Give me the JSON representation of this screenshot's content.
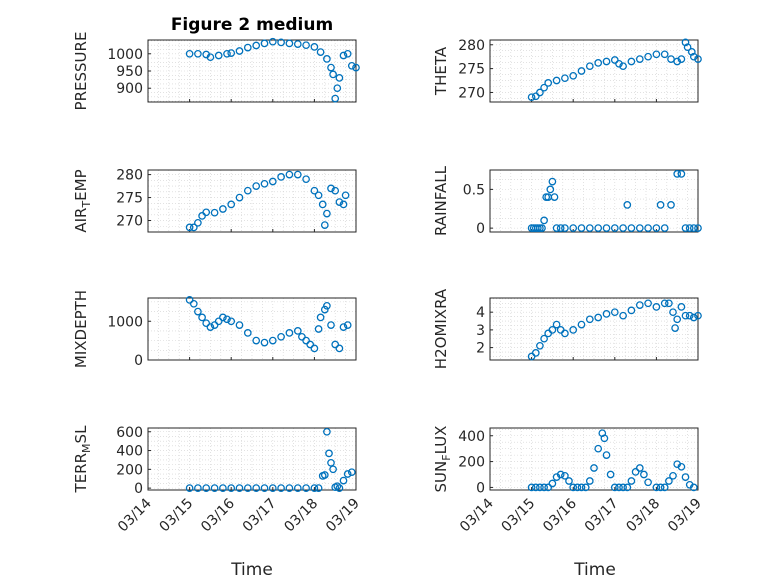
{
  "figure": {
    "title": "Figure 2 medium",
    "xlabel": "Time",
    "x_tick_labels": [
      "03/14",
      "03/15",
      "03/16",
      "03/17",
      "03/18",
      "03/19"
    ]
  },
  "colors": {
    "marker": "#0072BD",
    "axis": "#262626",
    "grid": "#d0d0d0"
  },
  "chart_data": [
    {
      "type": "scatter",
      "ylabel_main": "PRESSURE",
      "ylabel_sub": "",
      "ylabel_tail": "",
      "ylim": [
        860,
        1040
      ],
      "yticks": [
        900,
        950,
        1000
      ],
      "xlim": [
        0,
        5
      ],
      "grid": true,
      "points": [
        [
          1,
          1000
        ],
        [
          1.2,
          1000
        ],
        [
          1.4,
          998
        ],
        [
          1.5,
          990
        ],
        [
          1.7,
          995
        ],
        [
          1.9,
          1000
        ],
        [
          2,
          1002
        ],
        [
          2.2,
          1008
        ],
        [
          2.4,
          1018
        ],
        [
          2.6,
          1024
        ],
        [
          2.8,
          1030
        ],
        [
          3,
          1035
        ],
        [
          3.2,
          1033
        ],
        [
          3.4,
          1030
        ],
        [
          3.6,
          1028
        ],
        [
          3.8,
          1025
        ],
        [
          4,
          1020
        ],
        [
          4.15,
          1005
        ],
        [
          4.3,
          985
        ],
        [
          4.4,
          960
        ],
        [
          4.45,
          940
        ],
        [
          4.5,
          870
        ],
        [
          4.55,
          900
        ],
        [
          4.6,
          930
        ],
        [
          4.7,
          995
        ],
        [
          4.8,
          1000
        ],
        [
          4.9,
          965
        ],
        [
          5,
          960
        ]
      ]
    },
    {
      "type": "scatter",
      "ylabel_main": "THETA",
      "ylabel_sub": "",
      "ylabel_tail": "",
      "ylim": [
        268,
        281
      ],
      "yticks": [
        270,
        275,
        280
      ],
      "xlim": [
        0,
        5
      ],
      "grid": true,
      "points": [
        [
          1,
          269
        ],
        [
          1.1,
          269.2
        ],
        [
          1.2,
          270
        ],
        [
          1.3,
          271
        ],
        [
          1.4,
          272
        ],
        [
          1.6,
          272.5
        ],
        [
          1.8,
          273
        ],
        [
          2,
          273.5
        ],
        [
          2.2,
          274.5
        ],
        [
          2.4,
          275.5
        ],
        [
          2.6,
          276.2
        ],
        [
          2.8,
          276.5
        ],
        [
          3,
          276.8
        ],
        [
          3.1,
          276
        ],
        [
          3.2,
          275.5
        ],
        [
          3.4,
          276.5
        ],
        [
          3.6,
          277
        ],
        [
          3.8,
          277.5
        ],
        [
          4,
          278
        ],
        [
          4.2,
          278
        ],
        [
          4.35,
          277
        ],
        [
          4.5,
          276.5
        ],
        [
          4.6,
          277
        ],
        [
          4.7,
          280.5
        ],
        [
          4.75,
          279.5
        ],
        [
          4.85,
          278.5
        ],
        [
          4.9,
          277.5
        ],
        [
          5,
          277
        ]
      ]
    },
    {
      "type": "scatter",
      "ylabel_main": "AIR",
      "ylabel_sub": "T",
      "ylabel_tail": "EMP",
      "ylim": [
        267.5,
        281
      ],
      "yticks": [
        270,
        275,
        280
      ],
      "xlim": [
        0,
        5
      ],
      "grid": true,
      "points": [
        [
          1,
          268.5
        ],
        [
          1.1,
          268.5
        ],
        [
          1.2,
          269.5
        ],
        [
          1.3,
          271
        ],
        [
          1.4,
          271.8
        ],
        [
          1.6,
          271.7
        ],
        [
          1.8,
          272.5
        ],
        [
          2,
          273.5
        ],
        [
          2.2,
          275
        ],
        [
          2.4,
          276.5
        ],
        [
          2.6,
          277.5
        ],
        [
          2.8,
          278
        ],
        [
          3,
          278.5
        ],
        [
          3.2,
          279.5
        ],
        [
          3.4,
          280
        ],
        [
          3.6,
          280
        ],
        [
          3.8,
          279
        ],
        [
          4,
          276.5
        ],
        [
          4.1,
          275.5
        ],
        [
          4.2,
          273.5
        ],
        [
          4.25,
          269
        ],
        [
          4.3,
          271.5
        ],
        [
          4.4,
          277
        ],
        [
          4.5,
          276.5
        ],
        [
          4.6,
          274
        ],
        [
          4.7,
          273.5
        ],
        [
          4.75,
          275.5
        ]
      ]
    },
    {
      "type": "scatter",
      "ylabel_main": "RAINFALL",
      "ylabel_sub": "",
      "ylabel_tail": "",
      "ylim": [
        -0.05,
        0.75
      ],
      "yticks": [
        0,
        0.5
      ],
      "xlim": [
        0,
        5
      ],
      "grid": true,
      "points": [
        [
          1,
          0
        ],
        [
          1.05,
          0
        ],
        [
          1.1,
          0
        ],
        [
          1.15,
          0
        ],
        [
          1.2,
          0
        ],
        [
          1.25,
          0
        ],
        [
          1.3,
          0.1
        ],
        [
          1.35,
          0.4
        ],
        [
          1.4,
          0.4
        ],
        [
          1.45,
          0.5
        ],
        [
          1.5,
          0.6
        ],
        [
          1.55,
          0.4
        ],
        [
          1.6,
          0
        ],
        [
          1.7,
          0
        ],
        [
          1.8,
          0
        ],
        [
          2,
          0
        ],
        [
          2.2,
          0
        ],
        [
          2.4,
          0
        ],
        [
          2.6,
          0
        ],
        [
          2.8,
          0
        ],
        [
          3,
          0
        ],
        [
          3.2,
          0
        ],
        [
          3.3,
          0.3
        ],
        [
          3.4,
          0
        ],
        [
          3.6,
          0
        ],
        [
          3.8,
          0
        ],
        [
          4,
          0
        ],
        [
          4.1,
          0.3
        ],
        [
          4.2,
          0
        ],
        [
          4.35,
          0.3
        ],
        [
          4.5,
          0.7
        ],
        [
          4.6,
          0.7
        ],
        [
          4.7,
          0
        ],
        [
          4.8,
          0
        ],
        [
          4.9,
          0
        ],
        [
          5,
          0
        ]
      ]
    },
    {
      "type": "scatter",
      "ylabel_main": "MIXDEPTH",
      "ylabel_sub": "",
      "ylabel_tail": "",
      "ylim": [
        0,
        1600
      ],
      "yticks": [
        0,
        1000
      ],
      "xlim": [
        0,
        5
      ],
      "grid": true,
      "points": [
        [
          1,
          1550
        ],
        [
          1.1,
          1450
        ],
        [
          1.2,
          1250
        ],
        [
          1.3,
          1100
        ],
        [
          1.4,
          950
        ],
        [
          1.5,
          850
        ],
        [
          1.6,
          900
        ],
        [
          1.7,
          1000
        ],
        [
          1.8,
          1100
        ],
        [
          1.9,
          1050
        ],
        [
          2,
          1000
        ],
        [
          2.2,
          900
        ],
        [
          2.4,
          700
        ],
        [
          2.6,
          500
        ],
        [
          2.8,
          450
        ],
        [
          3,
          500
        ],
        [
          3.2,
          600
        ],
        [
          3.4,
          700
        ],
        [
          3.6,
          750
        ],
        [
          3.7,
          600
        ],
        [
          3.8,
          500
        ],
        [
          3.9,
          400
        ],
        [
          4,
          300
        ],
        [
          4.1,
          800
        ],
        [
          4.15,
          1100
        ],
        [
          4.25,
          1300
        ],
        [
          4.3,
          1400
        ],
        [
          4.4,
          900
        ],
        [
          4.5,
          400
        ],
        [
          4.6,
          300
        ],
        [
          4.7,
          850
        ],
        [
          4.8,
          900
        ]
      ]
    },
    {
      "type": "scatter",
      "ylabel_main": "H2OMIXRA",
      "ylabel_sub": "",
      "ylabel_tail": "",
      "ylim": [
        1.3,
        4.8
      ],
      "yticks": [
        2,
        3,
        4
      ],
      "xlim": [
        0,
        5
      ],
      "grid": true,
      "points": [
        [
          1,
          1.5
        ],
        [
          1.1,
          1.7
        ],
        [
          1.2,
          2.1
        ],
        [
          1.3,
          2.5
        ],
        [
          1.4,
          2.8
        ],
        [
          1.5,
          3
        ],
        [
          1.6,
          3.3
        ],
        [
          1.7,
          3
        ],
        [
          1.8,
          2.8
        ],
        [
          2,
          3
        ],
        [
          2.2,
          3.3
        ],
        [
          2.4,
          3.6
        ],
        [
          2.6,
          3.7
        ],
        [
          2.8,
          3.9
        ],
        [
          3,
          4
        ],
        [
          3.2,
          3.8
        ],
        [
          3.4,
          4.1
        ],
        [
          3.6,
          4.4
        ],
        [
          3.8,
          4.5
        ],
        [
          4,
          4.3
        ],
        [
          4.2,
          4.5
        ],
        [
          4.3,
          4.5
        ],
        [
          4.4,
          4
        ],
        [
          4.45,
          3.1
        ],
        [
          4.5,
          3.6
        ],
        [
          4.6,
          4.3
        ],
        [
          4.7,
          3.8
        ],
        [
          4.8,
          3.8
        ],
        [
          4.9,
          3.7
        ],
        [
          5,
          3.8
        ]
      ]
    },
    {
      "type": "scatter",
      "ylabel_main": "TERR",
      "ylabel_sub": "M",
      "ylabel_tail": "SL",
      "ylim": [
        -20,
        640
      ],
      "yticks": [
        0,
        200,
        400,
        600
      ],
      "xlim": [
        0,
        5
      ],
      "grid": true,
      "points": [
        [
          1,
          0
        ],
        [
          1.2,
          0
        ],
        [
          1.4,
          0
        ],
        [
          1.6,
          0
        ],
        [
          1.8,
          0
        ],
        [
          2,
          0
        ],
        [
          2.2,
          0
        ],
        [
          2.4,
          0
        ],
        [
          2.6,
          0
        ],
        [
          2.8,
          0
        ],
        [
          3,
          0
        ],
        [
          3.2,
          0
        ],
        [
          3.4,
          0
        ],
        [
          3.6,
          0
        ],
        [
          3.8,
          0
        ],
        [
          4,
          0
        ],
        [
          4.1,
          0
        ],
        [
          4.2,
          130
        ],
        [
          4.25,
          140
        ],
        [
          4.3,
          600
        ],
        [
          4.35,
          370
        ],
        [
          4.4,
          270
        ],
        [
          4.45,
          200
        ],
        [
          4.5,
          10
        ],
        [
          4.55,
          20
        ],
        [
          4.6,
          0
        ],
        [
          4.7,
          80
        ],
        [
          4.8,
          150
        ],
        [
          4.9,
          170
        ]
      ]
    },
    {
      "type": "scatter",
      "ylabel_main": "SUN",
      "ylabel_sub": "F",
      "ylabel_tail": "LUX",
      "ylim": [
        -20,
        460
      ],
      "yticks": [
        0,
        200,
        400
      ],
      "xlim": [
        0,
        5
      ],
      "grid": true,
      "points": [
        [
          1,
          0
        ],
        [
          1.1,
          0
        ],
        [
          1.2,
          0
        ],
        [
          1.3,
          0
        ],
        [
          1.4,
          0
        ],
        [
          1.5,
          30
        ],
        [
          1.6,
          80
        ],
        [
          1.7,
          100
        ],
        [
          1.8,
          90
        ],
        [
          1.9,
          50
        ],
        [
          2,
          0
        ],
        [
          2.1,
          0
        ],
        [
          2.2,
          0
        ],
        [
          2.3,
          0
        ],
        [
          2.4,
          50
        ],
        [
          2.5,
          150
        ],
        [
          2.6,
          300
        ],
        [
          2.7,
          420
        ],
        [
          2.75,
          380
        ],
        [
          2.8,
          250
        ],
        [
          2.9,
          100
        ],
        [
          3,
          0
        ],
        [
          3.1,
          0
        ],
        [
          3.2,
          0
        ],
        [
          3.3,
          0
        ],
        [
          3.4,
          50
        ],
        [
          3.5,
          120
        ],
        [
          3.6,
          150
        ],
        [
          3.7,
          100
        ],
        [
          3.8,
          40
        ],
        [
          4,
          0
        ],
        [
          4.1,
          0
        ],
        [
          4.2,
          0
        ],
        [
          4.3,
          50
        ],
        [
          4.4,
          90
        ],
        [
          4.5,
          180
        ],
        [
          4.6,
          160
        ],
        [
          4.7,
          80
        ],
        [
          4.8,
          20
        ],
        [
          4.9,
          0
        ]
      ]
    }
  ]
}
